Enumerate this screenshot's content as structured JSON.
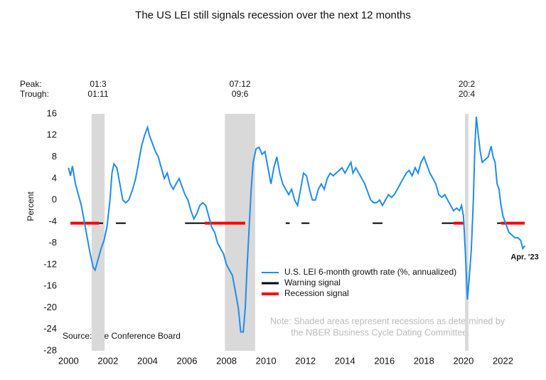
{
  "chart_data": {
    "type": "line",
    "title": "The US LEI still signals recession over the next 12 months",
    "y_label": "Percent",
    "xlim": [
      1999.7,
      2023.35
    ],
    "xticks": [
      2000,
      2002,
      2004,
      2006,
      2008,
      2010,
      2012,
      2014,
      2016,
      2018,
      2020,
      2022
    ],
    "ylim": [
      -28,
      16
    ],
    "yticks": [
      16,
      12,
      8,
      4,
      0,
      -4,
      -8,
      -12,
      -16,
      -20,
      -24,
      -28
    ],
    "x": [
      2000.0,
      2000.1,
      2000.2,
      2000.35,
      2000.5,
      2000.65,
      2000.8,
      2000.95,
      2001.1,
      2001.25,
      2001.35,
      2001.5,
      2001.65,
      2001.8,
      2001.95,
      2002.1,
      2002.2,
      2002.3,
      2002.45,
      2002.6,
      2002.75,
      2002.9,
      2003.05,
      2003.25,
      2003.4,
      2003.55,
      2003.7,
      2003.85,
      2004.0,
      2004.1,
      2004.25,
      2004.4,
      2004.55,
      2004.7,
      2004.85,
      2005.0,
      2005.15,
      2005.3,
      2005.45,
      2005.6,
      2005.75,
      2005.9,
      2006.05,
      2006.2,
      2006.35,
      2006.5,
      2006.65,
      2006.8,
      2006.95,
      2007.1,
      2007.25,
      2007.4,
      2007.55,
      2007.7,
      2007.85,
      2008.0,
      2008.15,
      2008.3,
      2008.45,
      2008.6,
      2008.72,
      2008.85,
      2008.95,
      2009.05,
      2009.15,
      2009.25,
      2009.35,
      2009.5,
      2009.65,
      2009.8,
      2009.95,
      2010.1,
      2010.25,
      2010.4,
      2010.55,
      2010.7,
      2010.85,
      2011.0,
      2011.15,
      2011.3,
      2011.45,
      2011.6,
      2011.75,
      2011.9,
      2012.05,
      2012.2,
      2012.35,
      2012.5,
      2012.65,
      2012.8,
      2012.95,
      2013.1,
      2013.25,
      2013.4,
      2013.55,
      2013.7,
      2013.85,
      2014.0,
      2014.15,
      2014.3,
      2014.4,
      2014.55,
      2014.7,
      2014.85,
      2015.0,
      2015.15,
      2015.3,
      2015.45,
      2015.6,
      2015.75,
      2015.9,
      2016.05,
      2016.2,
      2016.35,
      2016.5,
      2016.65,
      2016.8,
      2016.95,
      2017.1,
      2017.25,
      2017.4,
      2017.55,
      2017.7,
      2017.85,
      2018.0,
      2018.15,
      2018.3,
      2018.45,
      2018.6,
      2018.75,
      2018.9,
      2019.05,
      2019.2,
      2019.35,
      2019.5,
      2019.65,
      2019.8,
      2019.9,
      2020.0,
      2020.1,
      2020.2,
      2020.3,
      2020.4,
      2020.5,
      2020.58,
      2020.65,
      2020.75,
      2020.85,
      2020.95,
      2021.1,
      2021.25,
      2021.4,
      2021.5,
      2021.6,
      2021.7,
      2021.8,
      2021.9,
      2022.0,
      2022.15,
      2022.3,
      2022.45,
      2022.6,
      2022.75,
      2022.9,
      2023.0,
      2023.1
    ],
    "series": [
      {
        "name": "U.S. LEI 6-month growth rate (%, annualized)",
        "color": "#1f8ded",
        "values": [
          6,
          4.5,
          6.3,
          3,
          1,
          -1,
          -4,
          -7,
          -10,
          -12.5,
          -13,
          -11,
          -9,
          -7.5,
          -5,
          0,
          5,
          6.7,
          6,
          3,
          0,
          -0.5,
          0,
          2,
          4,
          7,
          10,
          12,
          13.5,
          12,
          10.5,
          9,
          8,
          6,
          4,
          5,
          3,
          2,
          3,
          4,
          2.5,
          1,
          0,
          -2,
          -3.5,
          -2.5,
          -1,
          -0.5,
          -1,
          -3,
          -5,
          -6,
          -8,
          -9,
          -10,
          -12,
          -13,
          -14,
          -17,
          -20,
          -24.5,
          -24.5,
          -20,
          -12,
          -5,
          2,
          7,
          9.5,
          9.8,
          8.5,
          9,
          6,
          3,
          6,
          8,
          5,
          3,
          2,
          1,
          2,
          0,
          -1,
          2,
          5,
          4.5,
          2,
          0,
          0,
          2,
          3,
          2,
          4,
          5,
          4.5,
          5,
          5.5,
          6,
          5,
          6,
          7,
          5,
          6,
          5,
          4,
          3,
          1.5,
          0,
          -0.5,
          -0.5,
          0,
          -1,
          0,
          1,
          0.5,
          1,
          2,
          3,
          4,
          5,
          5.5,
          4.5,
          6,
          5,
          7,
          8,
          6.5,
          5,
          4,
          3,
          1,
          0.5,
          1,
          0,
          -1,
          -2,
          -1.5,
          -2,
          -1,
          -3,
          -10,
          -18.5,
          -14,
          -9,
          0,
          10,
          15.5,
          12,
          9,
          7,
          7.5,
          8,
          10,
          8,
          7,
          3,
          2,
          -1,
          -3,
          -4.5,
          -6,
          -6.5,
          -7,
          -7,
          -7.5,
          -9,
          -8.5
        ]
      }
    ],
    "signals": [
      {
        "name": "Warning signal",
        "color": "#000000",
        "level": -4.3,
        "segments": [
          [
            2001.55,
            2001.75
          ],
          [
            2002.4,
            2002.9
          ],
          [
            2005.9,
            2006.9
          ],
          [
            2011.0,
            2011.2
          ],
          [
            2011.8,
            2012.2
          ],
          [
            2015.4,
            2015.9
          ],
          [
            2018.9,
            2019.5
          ],
          [
            2021.7,
            2021.9
          ]
        ]
      },
      {
        "name": "Recession signal",
        "color": "#ff0000",
        "level": -4.3,
        "segments": [
          [
            2000.1,
            2001.55
          ],
          [
            2006.9,
            2008.95
          ],
          [
            2019.5,
            2020.05
          ],
          [
            2021.9,
            2023.1
          ]
        ]
      }
    ],
    "peak_label": "Peak:",
    "trough_label": "Trough:",
    "recessions": [
      {
        "start": 2001.17,
        "end": 2001.83,
        "peak": "01:3",
        "trough": "01:11"
      },
      {
        "start": 2007.92,
        "end": 2009.45,
        "peak": "07:12",
        "trough": "09:6"
      },
      {
        "start": 2020.08,
        "end": 2020.25,
        "peak": "20:2",
        "trough": "20:4"
      }
    ],
    "last_label": "Apr. '23",
    "note": [
      "Note: Shaded areas represent recessions as determined by",
      "the NBER Business Cycle Dating Committee."
    ],
    "source": "Source: The Conference Board"
  }
}
